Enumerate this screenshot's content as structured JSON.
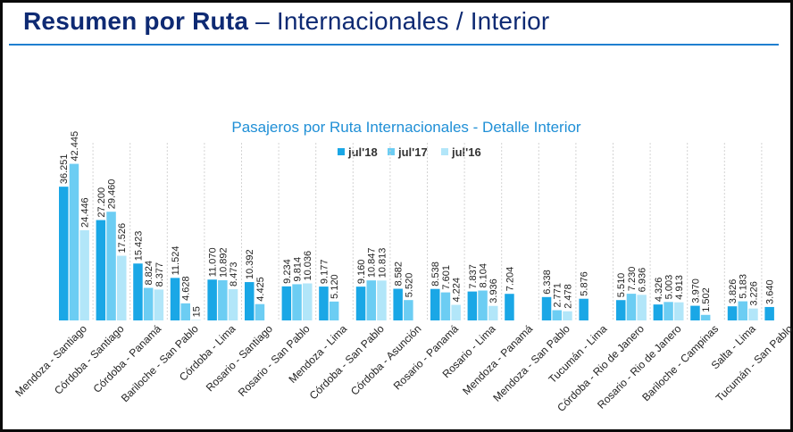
{
  "header": {
    "title_bold": "Resumen por Ruta",
    "title_rest": " – Internacionales / Interior"
  },
  "chart_data": {
    "type": "bar",
    "title": "Pasajeros por Ruta Internacionales - Detalle Interior",
    "xlabel": "",
    "ylabel": "",
    "ylim": [
      0,
      45000
    ],
    "grid": false,
    "legend_position": "top-center",
    "categories": [
      "Mendoza - Santiago",
      "Córdoba - Santiago",
      "Córdoba - Panamá",
      "Bariloche - San Pablo",
      "Córdoba - Lima",
      "Rosario - Santiago",
      "Rosario - San Pablo",
      "Mendoza - Lima",
      "Córdoba - San Pablo",
      "Córdoba - Asunción",
      "Rosario - Panamá",
      "Rosario - Lima",
      "Mendoza - Panamá",
      "Mendoza - San Pablo",
      "Tucumán - Lima",
      "Córdoba - Rio de Janero",
      "Rosario - Rio de Janero",
      "Bariloche - Campinas",
      "Salta - Lima",
      "Tucumán - San Pablo"
    ],
    "series": [
      {
        "name": "jul'18",
        "color": "#1aa7e6",
        "values": [
          36251,
          27200,
          15423,
          11524,
          11070,
          10392,
          9234,
          9177,
          9160,
          8582,
          8538,
          7837,
          7204,
          6338,
          5876,
          5510,
          4326,
          3970,
          3826,
          3640
        ],
        "labels": [
          "36.251",
          "27.200",
          "15.423",
          "11.524",
          "11.070",
          "10.392",
          "9.234",
          "9.177",
          "9.160",
          "8.582",
          "8.538",
          "7.837",
          "7.204",
          "6.338",
          "5.876",
          "5.510",
          "4.326",
          "3.970",
          "3.826",
          "3.640"
        ]
      },
      {
        "name": "jul'17",
        "color": "#6ccdf3",
        "values": [
          42445,
          29460,
          8824,
          4628,
          10892,
          4425,
          9814,
          5120,
          10847,
          5520,
          7601,
          8104,
          null,
          2771,
          null,
          7230,
          5003,
          1502,
          5183,
          null
        ],
        "labels": [
          "42.445",
          "29.460",
          "8.824",
          "4.628",
          "10.892",
          "4.425",
          "9.814",
          "5.120",
          "10.847",
          "5.520",
          "7.601",
          "8.104",
          "",
          "2.771",
          "",
          "7.230",
          "5.003",
          "1.502",
          "5.183",
          ""
        ]
      },
      {
        "name": "jul'16",
        "color": "#b2e6f9",
        "values": [
          24446,
          17526,
          8377,
          15,
          8473,
          null,
          10036,
          null,
          10813,
          null,
          4224,
          3936,
          null,
          2478,
          null,
          6936,
          4913,
          null,
          3226,
          null
        ],
        "labels": [
          "24.446",
          "17.526",
          "8.377",
          "15",
          "8.473",
          "",
          "10.036",
          "",
          "10.813",
          "",
          "4.224",
          "3.936",
          "",
          "2.478",
          "",
          "6.936",
          "4.913",
          "",
          "3.226",
          ""
        ]
      }
    ]
  }
}
